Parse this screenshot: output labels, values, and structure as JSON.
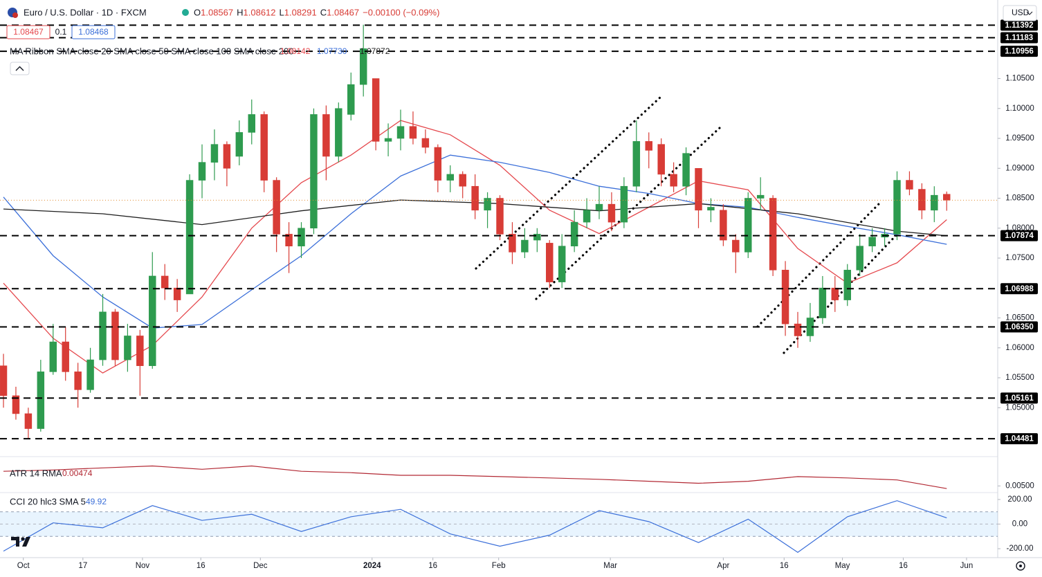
{
  "chart_data": {
    "type": "candlestick",
    "title": "Euro / U.S. Dollar · 1D · FXCM",
    "ohlc": [
      {
        "key": "O",
        "value": "1.08567"
      },
      {
        "key": "H",
        "value": "1.08612"
      },
      {
        "key": "L",
        "value": "1.08291"
      },
      {
        "key": "C",
        "value": "1.08467"
      }
    ],
    "change": "−0.00100 (−0.09%)",
    "price_boxes": {
      "sell": "1.08467",
      "spread": "0.1",
      "buy": "1.08468"
    },
    "currency": "USD",
    "ma_label": "MA Ribbon SMA close 20 SMA close 50 SMA close 100 SMA close 200",
    "up_color": "#2e9b4f",
    "down_color": "#d83c36",
    "xlim": [
      -0.28,
      80
    ],
    "xticks": [
      {
        "value": 1.6,
        "label": "Oct"
      },
      {
        "value": 6.4,
        "label": "17"
      },
      {
        "value": 11.2,
        "label": "Nov"
      },
      {
        "value": 15.9,
        "label": "16"
      },
      {
        "value": 20.7,
        "label": "Dec"
      },
      {
        "value": 29.7,
        "label": "2024"
      },
      {
        "value": 34.6,
        "label": "16"
      },
      {
        "value": 39.9,
        "label": "Feb"
      },
      {
        "value": 48.9,
        "label": "Mar"
      },
      {
        "value": 58.0,
        "label": "Apr"
      },
      {
        "value": 62.9,
        "label": "16"
      },
      {
        "value": 67.6,
        "label": "May"
      },
      {
        "value": 72.5,
        "label": "16"
      },
      {
        "value": 77.6,
        "label": "Jun"
      }
    ],
    "ylim": [
      1.0424,
      1.1172
    ],
    "yticks": [
      {
        "value": 1.105,
        "label": "1.10500"
      },
      {
        "value": 1.1,
        "label": "1.10000"
      },
      {
        "value": 1.095,
        "label": "1.09500"
      },
      {
        "value": 1.09,
        "label": "1.09000"
      },
      {
        "value": 1.085,
        "label": "1.08500"
      },
      {
        "value": 1.08,
        "label": "1.08000"
      },
      {
        "value": 1.075,
        "label": "1.07500"
      },
      {
        "value": 1.065,
        "label": "1.06500"
      },
      {
        "value": 1.06,
        "label": "1.06000"
      },
      {
        "value": 1.055,
        "label": "1.05500"
      },
      {
        "value": 1.05,
        "label": "1.05000"
      }
    ],
    "levels": [
      1.11392,
      1.11183,
      1.10956,
      1.07874,
      1.06988,
      {
        "value": 1.0635,
        "label": "1.06350"
      },
      1.05161,
      1.04481
    ],
    "candles": [
      [
        1.057,
        1.059,
        1.05,
        1.052
      ],
      [
        1.052,
        1.0535,
        1.048,
        1.049
      ],
      [
        1.049,
        1.05,
        1.0448,
        1.0465
      ],
      [
        1.0465,
        1.058,
        1.046,
        1.056
      ],
      [
        1.056,
        1.064,
        1.0555,
        1.061
      ],
      [
        1.061,
        1.0635,
        1.0545,
        1.056
      ],
      [
        1.056,
        1.0575,
        1.05,
        1.053
      ],
      [
        1.053,
        1.06,
        1.0525,
        1.058
      ],
      [
        1.058,
        1.069,
        1.057,
        1.066
      ],
      [
        1.066,
        1.0665,
        1.057,
        1.058
      ],
      [
        1.058,
        1.064,
        1.056,
        1.062
      ],
      [
        1.062,
        1.063,
        1.052,
        1.057
      ],
      [
        1.057,
        1.076,
        1.0565,
        1.072
      ],
      [
        1.072,
        1.074,
        1.068,
        1.07
      ],
      [
        1.07,
        1.0715,
        1.066,
        1.068
      ],
      [
        1.069,
        1.089,
        1.069,
        1.088
      ],
      [
        1.088,
        1.094,
        1.085,
        1.091
      ],
      [
        1.091,
        1.0965,
        1.088,
        1.094
      ],
      [
        1.094,
        1.0945,
        1.087,
        1.09
      ],
      [
        1.092,
        1.098,
        1.0905,
        1.096
      ],
      [
        1.096,
        1.1015,
        1.094,
        1.099
      ],
      [
        1.099,
        1.0995,
        1.086,
        1.088
      ],
      [
        1.088,
        1.0885,
        1.076,
        1.079
      ],
      [
        1.079,
        1.081,
        1.0725,
        1.077
      ],
      [
        1.077,
        1.081,
        1.075,
        1.08
      ],
      [
        1.08,
        1.1,
        1.079,
        1.099
      ],
      [
        1.099,
        1.1005,
        1.088,
        1.092
      ],
      [
        1.092,
        1.101,
        1.091,
        1.1
      ],
      [
        1.099,
        1.106,
        1.098,
        1.104
      ],
      [
        1.104,
        1.114,
        1.102,
        1.11
      ],
      [
        1.105,
        1.105,
        1.093,
        1.0945
      ],
      [
        1.0945,
        1.0975,
        1.092,
        1.095
      ],
      [
        1.095,
        1.0998,
        1.093,
        1.097
      ],
      [
        1.097,
        1.0995,
        1.094,
        1.095
      ],
      [
        1.095,
        1.0965,
        1.0925,
        1.0935
      ],
      [
        1.0935,
        1.094,
        1.086,
        1.088
      ],
      [
        1.088,
        1.0905,
        1.086,
        1.089
      ],
      [
        1.089,
        1.0895,
        1.085,
        1.087
      ],
      [
        1.087,
        1.089,
        1.0815,
        1.083
      ],
      [
        1.083,
        1.086,
        1.08,
        1.085
      ],
      [
        1.085,
        1.0855,
        1.078,
        1.079
      ],
      [
        1.079,
        1.081,
        1.074,
        1.076
      ],
      [
        1.076,
        1.08,
        1.075,
        1.078
      ],
      [
        1.078,
        1.08,
        1.076,
        1.079
      ],
      [
        1.0775,
        1.078,
        1.07,
        1.071
      ],
      [
        1.071,
        1.079,
        1.07,
        1.077
      ],
      [
        1.077,
        1.083,
        1.076,
        1.081
      ],
      [
        1.081,
        1.085,
        1.08,
        1.083
      ],
      [
        1.083,
        1.087,
        1.0815,
        1.084
      ],
      [
        1.084,
        1.086,
        1.0795,
        1.081
      ],
      [
        1.081,
        1.0885,
        1.08,
        1.087
      ],
      [
        1.087,
        1.098,
        1.086,
        1.0945
      ],
      [
        1.0945,
        1.096,
        1.09,
        1.093
      ],
      [
        1.094,
        1.095,
        1.087,
        1.089
      ],
      [
        1.089,
        1.091,
        1.086,
        1.087
      ],
      [
        1.087,
        1.0935,
        1.0855,
        1.0925
      ],
      [
        1.09,
        1.09,
        1.08,
        1.083
      ],
      [
        1.083,
        1.085,
        1.081,
        1.0835
      ],
      [
        1.083,
        1.084,
        1.077,
        1.078
      ],
      [
        1.078,
        1.079,
        1.0725,
        1.076
      ],
      [
        1.076,
        1.086,
        1.075,
        1.085
      ],
      [
        1.085,
        1.0885,
        1.083,
        1.0855
      ],
      [
        1.085,
        1.0855,
        1.072,
        1.073
      ],
      [
        1.073,
        1.0745,
        1.062,
        1.064
      ],
      [
        1.064,
        1.066,
        1.06,
        1.062
      ],
      [
        1.062,
        1.0675,
        1.061,
        1.065
      ],
      [
        1.065,
        1.072,
        1.064,
        1.07
      ],
      [
        1.07,
        1.072,
        1.066,
        1.068
      ],
      [
        1.068,
        1.074,
        1.067,
        1.073
      ],
      [
        1.073,
        1.079,
        1.072,
        1.077
      ],
      [
        1.077,
        1.08,
        1.076,
        1.0785
      ],
      [
        1.0785,
        1.08,
        1.077,
        1.079
      ],
      [
        1.079,
        1.0895,
        1.078,
        1.088
      ],
      [
        1.088,
        1.0895,
        1.0855,
        1.0865
      ],
      [
        1.0865,
        1.0875,
        1.0815,
        1.083
      ],
      [
        1.083,
        1.087,
        1.081,
        1.0855
      ],
      [
        1.08567,
        1.08612,
        1.08291,
        1.08467
      ]
    ],
    "ma": [
      {
        "color": "#e5484d",
        "legend_value": "1.08142",
        "x": [
          0,
          4,
          8,
          12,
          16,
          20,
          24,
          28,
          32,
          36,
          40,
          44,
          48,
          52,
          56,
          60,
          64,
          68,
          72,
          76
        ],
        "values": [
          1.0708,
          1.0616,
          1.0558,
          1.0604,
          1.0685,
          1.08,
          1.0876,
          1.0922,
          1.098,
          1.0956,
          1.0905,
          1.083,
          1.0791,
          1.0835,
          1.0879,
          1.0864,
          1.0766,
          1.0708,
          1.0742,
          1.08142
        ]
      },
      {
        "color": "#3b6fd9",
        "legend_value": "1.07730",
        "x": [
          0,
          4,
          8,
          12,
          16,
          20,
          24,
          28,
          32,
          36,
          40,
          44,
          48,
          52,
          56,
          60,
          64,
          68,
          72,
          76
        ],
        "values": [
          1.0852,
          1.0754,
          1.0685,
          1.0633,
          1.0639,
          1.0697,
          1.0754,
          1.0824,
          1.0887,
          1.0922,
          1.091,
          1.0893,
          1.087,
          1.0858,
          1.0841,
          1.0835,
          1.0818,
          1.0803,
          1.0789,
          1.0773
        ]
      },
      {
        "color": "#1e1e1e",
        "legend_value": "1.07872",
        "x": [
          0,
          8,
          16,
          24,
          32,
          40,
          48,
          56,
          64,
          72,
          76
        ],
        "values": [
          1.0832,
          1.0824,
          1.0806,
          1.0829,
          1.0847,
          1.0841,
          1.0829,
          1.0841,
          1.0824,
          1.0795,
          1.07872
        ]
      }
    ],
    "atr": {
      "label": "ATR 14 RMA",
      "value_label": "0.00474",
      "color": "#b22833",
      "ylim": [
        0.00435,
        0.00773
      ],
      "yticks": [
        {
          "value": 0.005,
          "label": "0.00500"
        }
      ],
      "x": [
        0,
        4,
        8,
        12,
        16,
        20,
        24,
        28,
        32,
        36,
        40,
        44,
        48,
        52,
        56,
        60,
        64,
        68,
        72,
        76
      ],
      "values": [
        0.00643,
        0.00656,
        0.00676,
        0.00695,
        0.00663,
        0.00695,
        0.00643,
        0.0063,
        0.00604,
        0.00604,
        0.00591,
        0.00578,
        0.00565,
        0.00546,
        0.00526,
        0.00546,
        0.00591,
        0.00578,
        0.00559,
        0.00474
      ]
    },
    "cci": {
      "label": "CCI 20 hlc3 SMA 5",
      "value_label": "49.92",
      "color": "#3b6fd9",
      "ylim": [
        -267,
        256
      ],
      "yticks": [
        {
          "value": 200,
          "label": "200.00"
        },
        {
          "value": 0,
          "label": "0.00"
        },
        {
          "value": -200,
          "label": "-200.00"
        }
      ],
      "band": [
        -100,
        100
      ],
      "x": [
        0,
        4,
        8,
        12,
        16,
        20,
        24,
        28,
        32,
        36,
        40,
        44,
        48,
        52,
        56,
        60,
        64,
        68,
        72,
        76
      ],
      "values": [
        -220,
        10,
        -30,
        150,
        30,
        80,
        -60,
        60,
        120,
        -80,
        -180,
        -90,
        110,
        20,
        -150,
        40,
        -230,
        60,
        190,
        49.92
      ]
    }
  }
}
